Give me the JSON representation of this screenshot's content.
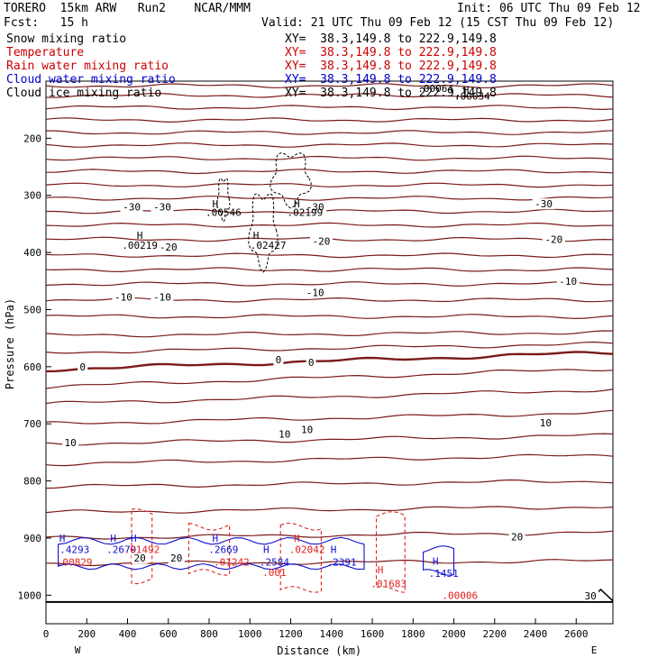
{
  "header": {
    "title_left": "TORERO  15km ARW   Run2    NCAR/MMM",
    "init": "Init: 06 UTC Thu 09 Feb 12",
    "fcst": "Fcst:   15 h",
    "valid": "Valid: 21 UTC Thu 09 Feb 12 (15 CST Thu 09 Feb 12)"
  },
  "legend": [
    {
      "label": "Snow mixing ratio",
      "color": "#000000",
      "xy": "XY=  38.3,149.8 to 222.9,149.8",
      "xy_color": "#000000"
    },
    {
      "label": "Temperature",
      "color": "#cc0000",
      "xy": "XY=  38.3,149.8 to 222.9,149.8",
      "xy_color": "#cc0000"
    },
    {
      "label": "Rain water mixing ratio",
      "color": "#cc0000",
      "xy": "XY=  38.3,149.8 to 222.9,149.8",
      "xy_color": "#cc0000"
    },
    {
      "label": "Cloud water mixing ratio",
      "color": "#0000cc",
      "xy": "XY=  38.3,149.8 to 222.9,149.8",
      "xy_color": "#0000cc"
    },
    {
      "label": "Cloud ice mixing ratio",
      "color": "#000000",
      "xy": "XY=  38.3,149.8 to 222.9,149.8",
      "xy_color": "#000000"
    }
  ],
  "colors": {
    "temperature": "#7a1a1a",
    "rain": "#e02020",
    "cloud_water": "#1010d0",
    "snow_ice": "#000000"
  },
  "chart_data": {
    "type": "line",
    "xlabel": "Distance (km)",
    "ylabel": "Pressure (hPa)",
    "xlim": [
      0,
      2780
    ],
    "ylim": [
      1050,
      100
    ],
    "x_ticks": [
      0,
      200,
      400,
      600,
      800,
      1000,
      1200,
      1400,
      1600,
      1800,
      2000,
      2200,
      2400,
      2600
    ],
    "y_ticks": [
      200,
      300,
      400,
      500,
      600,
      700,
      800,
      900,
      1000
    ],
    "x_end_labels": [
      "W",
      "E"
    ],
    "temperature_isotherm_pressures": [
      108,
      125,
      146,
      168,
      190,
      212,
      235,
      258,
      282,
      305,
      328,
      352,
      377,
      405,
      430,
      455,
      483,
      512,
      545,
      575,
      605,
      635,
      665,
      700,
      735,
      770,
      810,
      855,
      900,
      945
    ],
    "temperature_zero_index": 20,
    "temperature_tilt_hpa": [
      0,
      0,
      0,
      0,
      0,
      0,
      0,
      0,
      0,
      0,
      0,
      0,
      0,
      0,
      0,
      0,
      0,
      0,
      5,
      15,
      30,
      32,
      25,
      20,
      15,
      15,
      10,
      10,
      10,
      5
    ],
    "temperature_labels": [
      {
        "x": 420,
        "p": 320,
        "text": "-30"
      },
      {
        "x": 570,
        "p": 320,
        "text": "-30"
      },
      {
        "x": 1320,
        "p": 320,
        "text": "-30"
      },
      {
        "x": 2440,
        "p": 315,
        "text": "-30"
      },
      {
        "x": 600,
        "p": 390,
        "text": "-20"
      },
      {
        "x": 1350,
        "p": 380,
        "text": "-20"
      },
      {
        "x": 2490,
        "p": 377,
        "text": "-20"
      },
      {
        "x": 380,
        "p": 478,
        "text": "-10"
      },
      {
        "x": 570,
        "p": 478,
        "text": "-10"
      },
      {
        "x": 1320,
        "p": 470,
        "text": "-10"
      },
      {
        "x": 2560,
        "p": 450,
        "text": "-10"
      },
      {
        "x": 180,
        "p": 600,
        "text": "0"
      },
      {
        "x": 1140,
        "p": 588,
        "text": "0"
      },
      {
        "x": 1300,
        "p": 592,
        "text": "0"
      },
      {
        "x": 120,
        "p": 733,
        "text": "10"
      },
      {
        "x": 1170,
        "p": 718,
        "text": "10"
      },
      {
        "x": 1280,
        "p": 710,
        "text": "10"
      },
      {
        "x": 2450,
        "p": 698,
        "text": "10"
      },
      {
        "x": 460,
        "p": 935,
        "text": "20"
      },
      {
        "x": 640,
        "p": 935,
        "text": "20"
      },
      {
        "x": 2310,
        "p": 898,
        "text": "20"
      },
      {
        "x": 2670,
        "p": 1001,
        "text": "30"
      }
    ],
    "maxima_labels": [
      {
        "x": 460,
        "p": 387,
        "text": ".00219",
        "color": "#000000"
      },
      {
        "x": 870,
        "p": 330,
        "text": ".00546",
        "color": "#000000"
      },
      {
        "x": 1270,
        "p": 330,
        "text": ".02199",
        "color": "#000000"
      },
      {
        "x": 1090,
        "p": 387,
        "text": ".02427",
        "color": "#000000"
      },
      {
        "x": 2090,
        "p": 126,
        "text": ".00034",
        "color": "#000000"
      },
      {
        "x": 1910,
        "p": 113,
        "text": ".00064",
        "color": "#000000"
      },
      {
        "x": 140,
        "p": 920,
        "text": ".4293",
        "color": "#1010d0"
      },
      {
        "x": 140,
        "p": 942,
        "text": ".00829",
        "color": "#e02020"
      },
      {
        "x": 370,
        "p": 920,
        "text": ".2679",
        "color": "#1010d0"
      },
      {
        "x": 470,
        "p": 920,
        "text": ".01492",
        "color": "#e02020"
      },
      {
        "x": 870,
        "p": 920,
        "text": ".2669",
        "color": "#1010d0"
      },
      {
        "x": 910,
        "p": 942,
        "text": ".01242",
        "color": "#e02020"
      },
      {
        "x": 1120,
        "p": 942,
        "text": ".2584",
        "color": "#1010d0"
      },
      {
        "x": 1120,
        "p": 960,
        "text": ".001",
        "color": "#e02020"
      },
      {
        "x": 1280,
        "p": 920,
        "text": ".02042",
        "color": "#e02020"
      },
      {
        "x": 1450,
        "p": 942,
        "text": ".2391",
        "color": "#1010d0"
      },
      {
        "x": 1680,
        "p": 980,
        "text": ".01683",
        "color": "#e02020"
      },
      {
        "x": 1950,
        "p": 962,
        "text": ".1451",
        "color": "#1010d0"
      },
      {
        "x": 2030,
        "p": 1000,
        "text": ".00006",
        "color": "#e02020"
      }
    ],
    "maxima_markers": [
      {
        "x": 460,
        "p": 370,
        "color": "#000000"
      },
      {
        "x": 830,
        "p": 315,
        "color": "#000000"
      },
      {
        "x": 1230,
        "p": 315,
        "color": "#000000"
      },
      {
        "x": 1030,
        "p": 370,
        "color": "#000000"
      },
      {
        "x": 2060,
        "p": 115,
        "color": "#000000"
      },
      {
        "x": 80,
        "p": 900,
        "color": "#1010d0"
      },
      {
        "x": 330,
        "p": 900,
        "color": "#1010d0"
      },
      {
        "x": 430,
        "p": 900,
        "color": "#1010d0"
      },
      {
        "x": 830,
        "p": 900,
        "color": "#1010d0"
      },
      {
        "x": 1080,
        "p": 920,
        "color": "#1010d0"
      },
      {
        "x": 1230,
        "p": 900,
        "color": "#e02020"
      },
      {
        "x": 1410,
        "p": 920,
        "color": "#1010d0"
      },
      {
        "x": 1640,
        "p": 955,
        "color": "#e02020"
      },
      {
        "x": 1910,
        "p": 940,
        "color": "#1010d0"
      }
    ]
  }
}
